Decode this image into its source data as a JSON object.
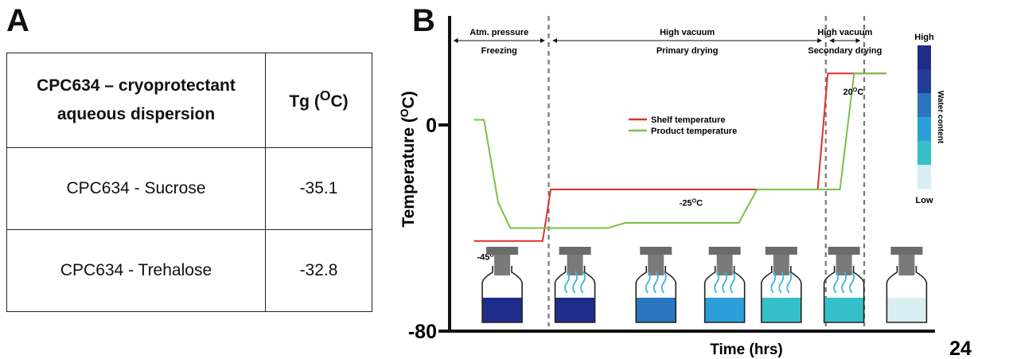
{
  "panel_a": {
    "letter": "A",
    "header": {
      "col1_line1": "CPC634 – cryoprotectant",
      "col1_line2": "aqueous dispersion",
      "col2_main": "Tg (",
      "col2_sup": "O",
      "col2_end": "C)"
    },
    "rows": [
      {
        "name": "CPC634 - Sucrose",
        "tg": "-35.1"
      },
      {
        "name": "CPC634 - Trehalose",
        "tg": "-32.8"
      }
    ]
  },
  "panel_b": {
    "letter": "B"
  },
  "chart_data": {
    "type": "line",
    "xlabel": "Time (hrs)",
    "ylabel_main": "Temperature (",
    "ylabel_sup": "O",
    "ylabel_end": "C)",
    "x_tick_end": "24",
    "xlim": [
      0,
      24
    ],
    "ylim": [
      -80,
      30
    ],
    "y_ticks": [
      {
        "value": 0,
        "label": "0"
      },
      {
        "value": -80,
        "label": "-80"
      }
    ],
    "phase_dividers": [
      4.9,
      18.6,
      20.5
    ],
    "phases": [
      {
        "top": "Atm. pressure",
        "bottom": "Freezing",
        "x_start": 0,
        "x_end": 4.9
      },
      {
        "top": "High vacuum",
        "bottom": "Primary drying",
        "x_start": 4.9,
        "x_end": 18.6
      },
      {
        "top": "High vacuum",
        "bottom": "Secondary drying",
        "x_start": 18.6,
        "x_end": 20.5
      }
    ],
    "series": [
      {
        "name": "Shelf temperature",
        "color": "#e0312b",
        "x": [
          1.2,
          4.6,
          5.0,
          18.2,
          18.7,
          21.6
        ],
        "y": [
          -45,
          -45,
          -25,
          -25,
          20,
          20
        ]
      },
      {
        "name": "Product temperature",
        "color": "#7ac143",
        "x": [
          1.2,
          1.7,
          2.4,
          3.0,
          7.8,
          8.7,
          14.3,
          15.2,
          19.3,
          20.0,
          21.6
        ],
        "y": [
          2,
          2,
          -30,
          -40,
          -40,
          -38,
          -38,
          -25,
          -25,
          20,
          20
        ]
      }
    ],
    "annotations": [
      {
        "text": "-45",
        "sup": "O",
        "end": "C",
        "x": 1.2,
        "y": -48
      },
      {
        "text": "-25",
        "sup": "O",
        "end": "C",
        "x": 11.2,
        "y": -27
      },
      {
        "text": "20",
        "sup": "O",
        "end": "C",
        "x": 19.3,
        "y": 16
      }
    ],
    "legend": {
      "placement": "center-top"
    },
    "water_content_scale": {
      "title": "Water content",
      "high": "High",
      "low": "Low",
      "colors": [
        "#d9eef2",
        "#35c0c8",
        "#2d9fd8",
        "#2b76be",
        "#243b9a",
        "#1f2d8a"
      ]
    },
    "vials": [
      {
        "x": 2.6,
        "fill_color": "#1f2d8a",
        "vapor": false
      },
      {
        "x": 6.2,
        "fill_color": "#1f2d8a",
        "vapor": true
      },
      {
        "x": 10.2,
        "fill_color": "#2b76be",
        "vapor": true
      },
      {
        "x": 13.6,
        "fill_color": "#2d9fd8",
        "vapor": true
      },
      {
        "x": 16.4,
        "fill_color": "#35c0c8",
        "vapor": true
      },
      {
        "x": 19.5,
        "fill_color": "#35c0c8",
        "vapor": true
      },
      {
        "x": 22.6,
        "fill_color": "#d9eef2",
        "vapor": false
      }
    ]
  }
}
